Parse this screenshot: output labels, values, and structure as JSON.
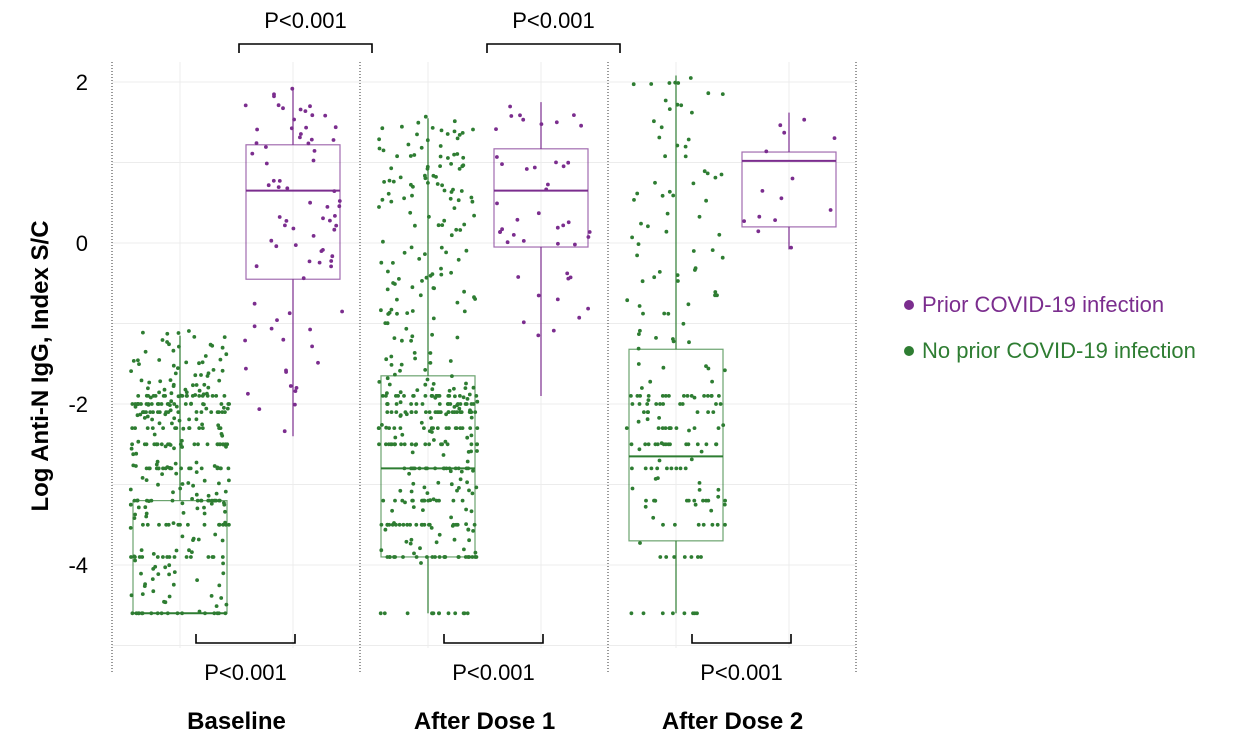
{
  "chart_data": {
    "type": "box",
    "ylabel": "Log Anti-N IgG, Index S/C",
    "ylim": [
      -5.0,
      2.2
    ],
    "yticks": [
      2,
      0,
      -2,
      -4
    ],
    "yticklabels": [
      "2",
      "0",
      "-2",
      "-4"
    ],
    "categories": [
      "Baseline",
      "After Dose 1",
      "After Dose 2"
    ],
    "grid": true,
    "legend_position": "right",
    "series": [
      {
        "name": "Prior COVID-19 infection",
        "color": "#7b2d8e",
        "boxes": [
          {
            "q1": -0.45,
            "median": 0.65,
            "q3": 1.22,
            "whisker_low": -2.4,
            "whisker_high": 1.92
          },
          {
            "q1": -0.05,
            "median": 0.65,
            "q3": 1.17,
            "whisker_low": -1.9,
            "whisker_high": 1.75
          },
          {
            "q1": 0.2,
            "median": 1.02,
            "q3": 1.13,
            "whisker_low": -0.08,
            "whisker_high": 1.62
          }
        ]
      },
      {
        "name": "No prior COVID-19 infection",
        "color": "#2e7d32",
        "boxes": [
          {
            "q1": -4.6,
            "median": -4.6,
            "q3": -3.2,
            "whisker_low": -4.6,
            "whisker_high": -1.15
          },
          {
            "q1": -3.9,
            "median": -2.8,
            "q3": -1.65,
            "whisker_low": -4.6,
            "whisker_high": 1.55
          },
          {
            "q1": -3.7,
            "median": -2.65,
            "q3": -1.32,
            "whisker_low": -4.6,
            "whisker_high": 2.08
          }
        ]
      }
    ],
    "comparisons": [
      {
        "label": "P<0.001",
        "between": "Baseline prior vs After Dose 1 no prior",
        "position": "top"
      },
      {
        "label": "P<0.001",
        "between": "After Dose 1 prior vs After Dose 2 no prior",
        "position": "top"
      },
      {
        "label": "P<0.001",
        "between": "Baseline groups",
        "position": "bottom"
      },
      {
        "label": "P<0.001",
        "between": "After Dose 1 groups",
        "position": "bottom"
      },
      {
        "label": "P<0.001",
        "between": "After Dose 2 groups",
        "position": "bottom"
      }
    ]
  }
}
